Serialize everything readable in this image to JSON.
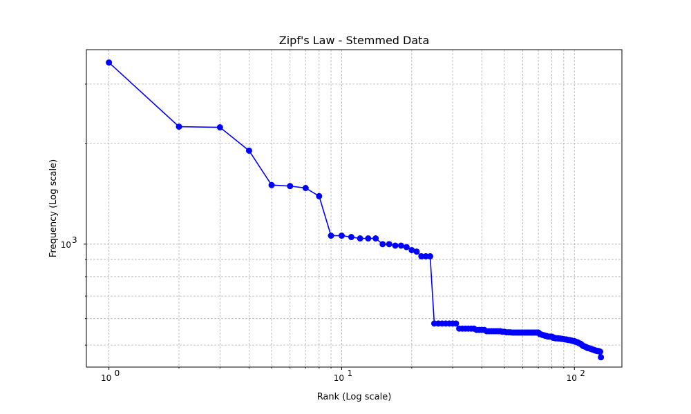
{
  "chart_data": {
    "type": "line",
    "title": "Zipf's Law - Stemmed Data",
    "xlabel": "Rank (Log scale)",
    "ylabel": "Frequency (Log scale)",
    "xscale": "log",
    "yscale": "log",
    "xlim": [
      0.8,
      160
    ],
    "ylim": [
      430,
      3800
    ],
    "grid": true,
    "x_tick_labels": [
      {
        "base": "10",
        "exp": "0",
        "value": 1
      },
      {
        "base": "10",
        "exp": "1",
        "value": 10
      },
      {
        "base": "10",
        "exp": "2",
        "value": 100
      }
    ],
    "y_tick_labels": [
      {
        "base": "10",
        "exp": "3",
        "value": 1000
      }
    ],
    "colors": {
      "line": "#0000ff",
      "marker": "#0000ff",
      "grid": "#b0b0b0"
    },
    "series": [
      {
        "x": [
          1,
          2,
          3,
          4,
          5,
          6,
          7,
          8,
          9,
          10,
          11,
          12,
          13,
          14,
          15,
          16,
          17,
          18,
          19,
          20,
          21,
          22,
          23,
          24,
          25,
          26,
          27,
          28,
          29,
          30,
          31,
          32,
          33,
          34,
          35,
          36,
          37,
          38,
          39,
          40,
          41,
          42,
          43,
          44,
          45,
          46,
          47,
          48,
          49,
          50,
          51,
          52,
          53,
          54,
          55,
          56,
          57,
          58,
          59,
          60,
          61,
          62,
          63,
          64,
          65,
          66,
          67,
          68,
          69,
          70,
          71,
          72,
          73,
          74,
          75,
          76,
          77,
          78,
          79,
          80,
          81,
          82,
          83,
          84,
          85,
          86,
          87,
          88,
          89,
          90,
          91,
          92,
          93,
          94,
          95,
          96,
          97,
          98,
          99,
          100,
          101,
          102,
          103,
          104,
          105,
          106,
          107,
          108,
          109,
          110,
          111,
          112,
          113,
          114,
          115,
          116,
          117,
          118,
          119,
          120,
          121,
          122,
          123,
          124,
          125,
          126,
          127,
          128,
          129,
          130
        ],
        "values": [
          3480,
          2240,
          2230,
          1900,
          1500,
          1490,
          1470,
          1390,
          1060,
          1060,
          1050,
          1040,
          1040,
          1040,
          1000,
          1000,
          990,
          990,
          980,
          960,
          950,
          920,
          920,
          920,
          580,
          580,
          580,
          580,
          580,
          580,
          580,
          560,
          560,
          560,
          560,
          560,
          560,
          555,
          555,
          555,
          555,
          550,
          550,
          550,
          550,
          550,
          550,
          550,
          548,
          548,
          546,
          546,
          546,
          545,
          545,
          545,
          545,
          545,
          545,
          545,
          545,
          545,
          545,
          545,
          545,
          545,
          545,
          545,
          545,
          545,
          540,
          538,
          536,
          535,
          533,
          532,
          530,
          530,
          530,
          530,
          526,
          526,
          524,
          524,
          524,
          523,
          523,
          522,
          522,
          521,
          520,
          520,
          519,
          518,
          518,
          517,
          516,
          515,
          514,
          514,
          512,
          511,
          510,
          508,
          506,
          505,
          503,
          500,
          497,
          496,
          495,
          494,
          492,
          490,
          490,
          489,
          488,
          487,
          486,
          485,
          484,
          483,
          482,
          481,
          481,
          480,
          480,
          479,
          478,
          460
        ]
      }
    ]
  }
}
